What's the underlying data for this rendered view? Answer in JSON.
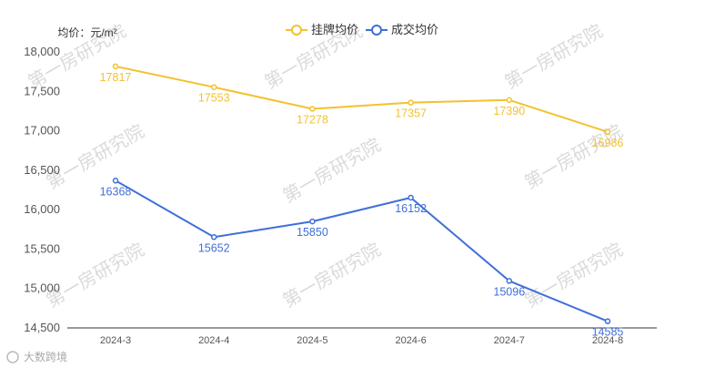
{
  "chart_data": {
    "type": "line",
    "ylabel": "均价：元/m²",
    "categories": [
      "2024-3",
      "2024-4",
      "2024-5",
      "2024-6",
      "2024-7",
      "2024-8"
    ],
    "series": [
      {
        "name": "挂牌均价",
        "color": "#f2c230",
        "values": [
          17817,
          17553,
          17278,
          17357,
          17390,
          16986
        ]
      },
      {
        "name": "成交均价",
        "color": "#3f6fd8",
        "values": [
          16368,
          15652,
          15850,
          16152,
          15096,
          14585
        ]
      }
    ],
    "ylim": [
      14500,
      18000
    ],
    "yticks": [
      "14,500",
      "15,000",
      "15,500",
      "16,000",
      "16,500",
      "17,000",
      "17,500",
      "18,000"
    ],
    "legend": "top-center",
    "grid": false
  },
  "watermark": "第一房研究院",
  "footer": {
    "logo_text": "大数跨境"
  }
}
